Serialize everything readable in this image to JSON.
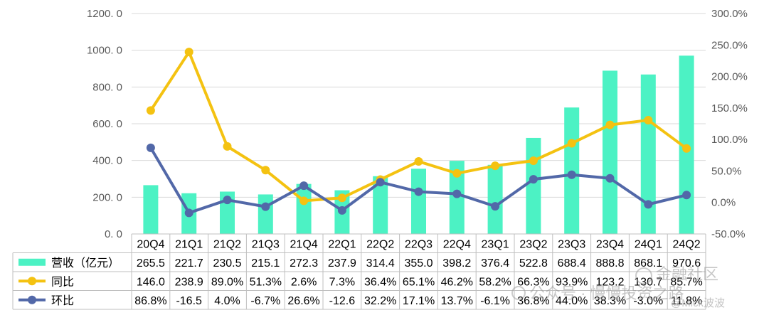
{
  "chart_data": {
    "type": "bar",
    "categories": [
      "20Q4",
      "21Q1",
      "21Q2",
      "21Q3",
      "21Q4",
      "22Q1",
      "22Q2",
      "22Q3",
      "22Q4",
      "23Q1",
      "23Q2",
      "23Q3",
      "23Q4",
      "24Q1",
      "24Q2"
    ],
    "series": [
      {
        "name": "营收（亿元）",
        "type": "bar",
        "axis": "left",
        "values": [
          265.5,
          221.7,
          230.5,
          215.1,
          272.3,
          237.9,
          314.4,
          355.0,
          398.2,
          376.4,
          522.8,
          688.4,
          888.8,
          868.1,
          970.6
        ],
        "labels": [
          "265.5",
          "221.7",
          "230.5",
          "215.1",
          "272.3",
          "237.9",
          "314.4",
          "355.0",
          "398.2",
          "376.4",
          "522.8",
          "688.4",
          "888.8",
          "868.1",
          "970.6"
        ]
      },
      {
        "name": "同比",
        "type": "line",
        "axis": "right",
        "values": [
          146.0,
          238.9,
          89.0,
          51.3,
          2.6,
          7.3,
          36.4,
          65.1,
          46.2,
          58.2,
          66.3,
          93.9,
          123.2,
          130.7,
          85.7
        ],
        "labels": [
          "146.0",
          "238.9",
          "89.0%",
          "51.3%",
          "2.6%",
          "7.3%",
          "36.4%",
          "65.1%",
          "46.2%",
          "58.2%",
          "66.3%",
          "93.9%",
          "123.2",
          "130.7",
          "85.7%"
        ]
      },
      {
        "name": "环比",
        "type": "line",
        "axis": "right",
        "values": [
          86.8,
          -16.5,
          4.0,
          -6.7,
          26.6,
          -12.6,
          32.2,
          17.1,
          13.7,
          -6.1,
          36.8,
          44.0,
          38.3,
          -3.0,
          11.8
        ],
        "labels": [
          "86.8%",
          "-16.5",
          "4.0%",
          "-6.7%",
          "26.6%",
          "-12.6",
          "32.2%",
          "17.1%",
          "13.7%",
          "-6.1%",
          "36.8%",
          "44.0%",
          "38.3%",
          "-3.0%",
          "11.8%"
        ]
      }
    ],
    "y_left": {
      "min": 0,
      "max": 1200,
      "step": 200,
      "ticks": [
        "0. 0",
        "200. 0",
        "400. 0",
        "600. 0",
        "800. 0",
        "1000. 0",
        "1200. 0"
      ]
    },
    "y_right": {
      "min": -50,
      "max": 300,
      "step": 50,
      "ticks": [
        "-50.0%",
        "0.0%",
        "50.0%",
        "100.0%",
        "150.0%",
        "200.0%",
        "250.0%",
        "300.0%"
      ]
    },
    "grid": true,
    "legend": "data-table",
    "colors": {
      "bar": "#4cf2c4",
      "yoy": "#f4c211",
      "qoq": "#5268a8",
      "grid": "#d9d9d9",
      "table_border": "#bfbfbf"
    }
  },
  "watermarks": {
    "line1": "金融社区",
    "line2": "公众号 · 慢慢投资之路",
    "line3": "@Mick波波"
  }
}
